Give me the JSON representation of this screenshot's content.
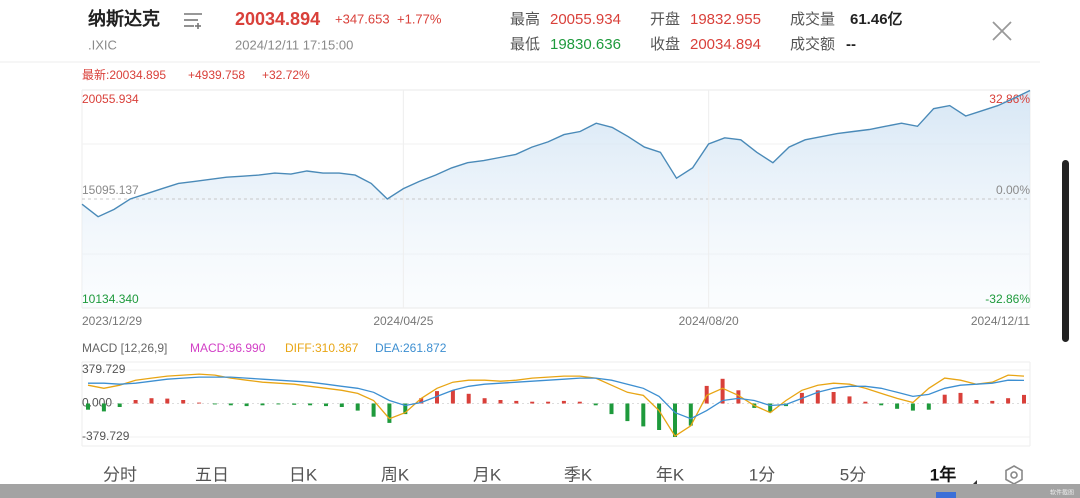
{
  "header": {
    "name": "纳斯达克",
    "code": ".IXIC",
    "price": "20034.894",
    "change": "+347.653",
    "change_pct": "+1.77%",
    "datetime": "2024/12/11 17:15:00",
    "stats": [
      {
        "label": "最高",
        "value": "20055.934"
      },
      {
        "label": "开盘",
        "value": "19832.955"
      },
      {
        "label": "成交量",
        "value": "61.46亿"
      },
      {
        "label": "最低",
        "value": "19830.636"
      },
      {
        "label": "收盘",
        "value": "20034.894"
      },
      {
        "label": "成交额",
        "value": "--"
      }
    ]
  },
  "chart_data": [
    {
      "type": "line",
      "latest": "最新:20034.895",
      "latest_change": "+4939.758",
      "latest_pct": "+32.72%",
      "color": "#4a8ab8",
      "up_color": "#d9403a",
      "down_color": "#1e9a3c",
      "values": [
        14858.4,
        14291.4,
        14622.1,
        15094.9,
        15330.9,
        15567.2,
        15803.4,
        15897.9,
        15992.4,
        16086.9,
        16134.2,
        16181.4,
        16275.9,
        16228.7,
        16370.4,
        16275.9,
        16275.9,
        16181.4,
        15803.4,
        15094.9,
        15567.2,
        15897.9,
        16181.4,
        16512.2,
        16748.4,
        16842.9,
        16984.7,
        17126.4,
        17457.2,
        17693.4,
        18024.2,
        18165.9,
        18543.9,
        18354.9,
        17929.7,
        17457.2,
        17220.9,
        16039.7,
        16512.2,
        17598.9,
        17882.4,
        17787.9,
        17220.9,
        16748.4,
        17457.2,
        17787.9,
        17929.7,
        18071.4,
        18165.9,
        18260.4,
        18402.2,
        18543.9,
        18402.2,
        19205.4,
        19347.2,
        18874.7,
        19110.9,
        19347.2,
        19677.9,
        20034.9
      ],
      "xlim": [
        0,
        59
      ],
      "xticks": [
        {
          "value": 0,
          "label": "2023/12/29"
        },
        {
          "value": 20,
          "label": "2024/04/25"
        },
        {
          "value": 39,
          "label": "2024/08/20"
        },
        {
          "value": 59,
          "label": "2024/12/11"
        }
      ],
      "ylim": [
        10134.34,
        20055.934
      ],
      "yticks": [
        20055.934,
        15095.137,
        {
          "value": 10134.34,
          "label": "10134.340"
        }
      ],
      "y2lim": [
        -32.86,
        32.86
      ],
      "y2ticks": [
        {
          "value": 32.86,
          "label": "32.86%"
        },
        {
          "value": 0,
          "label": "0.00%"
        },
        {
          "value": -32.86,
          "label": "-32.86%"
        }
      ]
    },
    {
      "type": "macd",
      "title": "MACD [12,26,9]",
      "ylim": [
        -379.729,
        379.729
      ],
      "yticks": [
        379.729,
        {
          "value": 0,
          "label": "0.000"
        },
        -379.729
      ],
      "series": [
        {
          "label": "MACD:96.990",
          "type": "bar",
          "color": "#d23fc6",
          "up_color": "#d9403a",
          "down_color": "#1e9a3c",
          "values": [
            -70,
            -90,
            -40,
            40,
            60,
            55,
            40,
            10,
            -10,
            -20,
            -30,
            -20,
            -10,
            -15,
            -20,
            -30,
            -40,
            -80,
            -150,
            -220,
            -120,
            60,
            140,
            150,
            110,
            60,
            40,
            30,
            20,
            20,
            30,
            20,
            -20,
            -120,
            -200,
            -260,
            -300,
            -380,
            -250,
            200,
            280,
            150,
            -50,
            -100,
            -30,
            120,
            150,
            130,
            80,
            20,
            -20,
            -60,
            -80,
            -70,
            100,
            120,
            40,
            30,
            60,
            96.99
          ]
        },
        {
          "label": "DIFF:310.367",
          "type": "line",
          "color": "#e8a514",
          "values": [
            207,
            172.5,
            207,
            264.5,
            287.5,
            310.5,
            322,
            333.5,
            322,
            287.5,
            264.5,
            241.5,
            230,
            218.5,
            195.5,
            172.5,
            149.5,
            115,
            34.5,
            -172.5,
            -103.5,
            57.5,
            172.5,
            241.5,
            264.5,
            264.5,
            253,
            264.5,
            287.5,
            299,
            310.5,
            310.5,
            287.5,
            207,
            126.5,
            92,
            -80.5,
            -370,
            -253,
            92,
            172.5,
            92,
            -23,
            -103.5,
            34.5,
            149.5,
            207,
            230,
            218.5,
            172.5,
            115,
            57.5,
            11.5,
            172.5,
            287.5,
            264.5,
            218.5,
            241.5,
            322,
            310.367
          ]
        },
        {
          "label": "DEA:261.872",
          "type": "line",
          "color": "#3d8fd1",
          "values": [
            230,
            230,
            218.5,
            230,
            253,
            276,
            287.5,
            299,
            299,
            299,
            287.5,
            276,
            264.5,
            253,
            241.5,
            218.5,
            195.5,
            172.5,
            126.5,
            34.5,
            -23,
            11.5,
            80.5,
            149.5,
            195.5,
            218.5,
            230,
            241.5,
            253,
            264.5,
            276,
            287.5,
            287.5,
            264.5,
            218.5,
            172.5,
            80.5,
            -103.5,
            -172.5,
            -80.5,
            34.5,
            57.5,
            34.5,
            -23,
            -11.5,
            57.5,
            126.5,
            172.5,
            195.5,
            195.5,
            172.5,
            126.5,
            80.5,
            103.5,
            172.5,
            207,
            218.5,
            230,
            264.5,
            261.872
          ]
        }
      ]
    }
  ],
  "tabs": [
    "分时",
    "五日",
    "日K",
    "周K",
    "月K",
    "季K",
    "年K",
    "1分",
    "5分",
    "1年"
  ],
  "selected_tab": 9,
  "watermark": "软件截图"
}
